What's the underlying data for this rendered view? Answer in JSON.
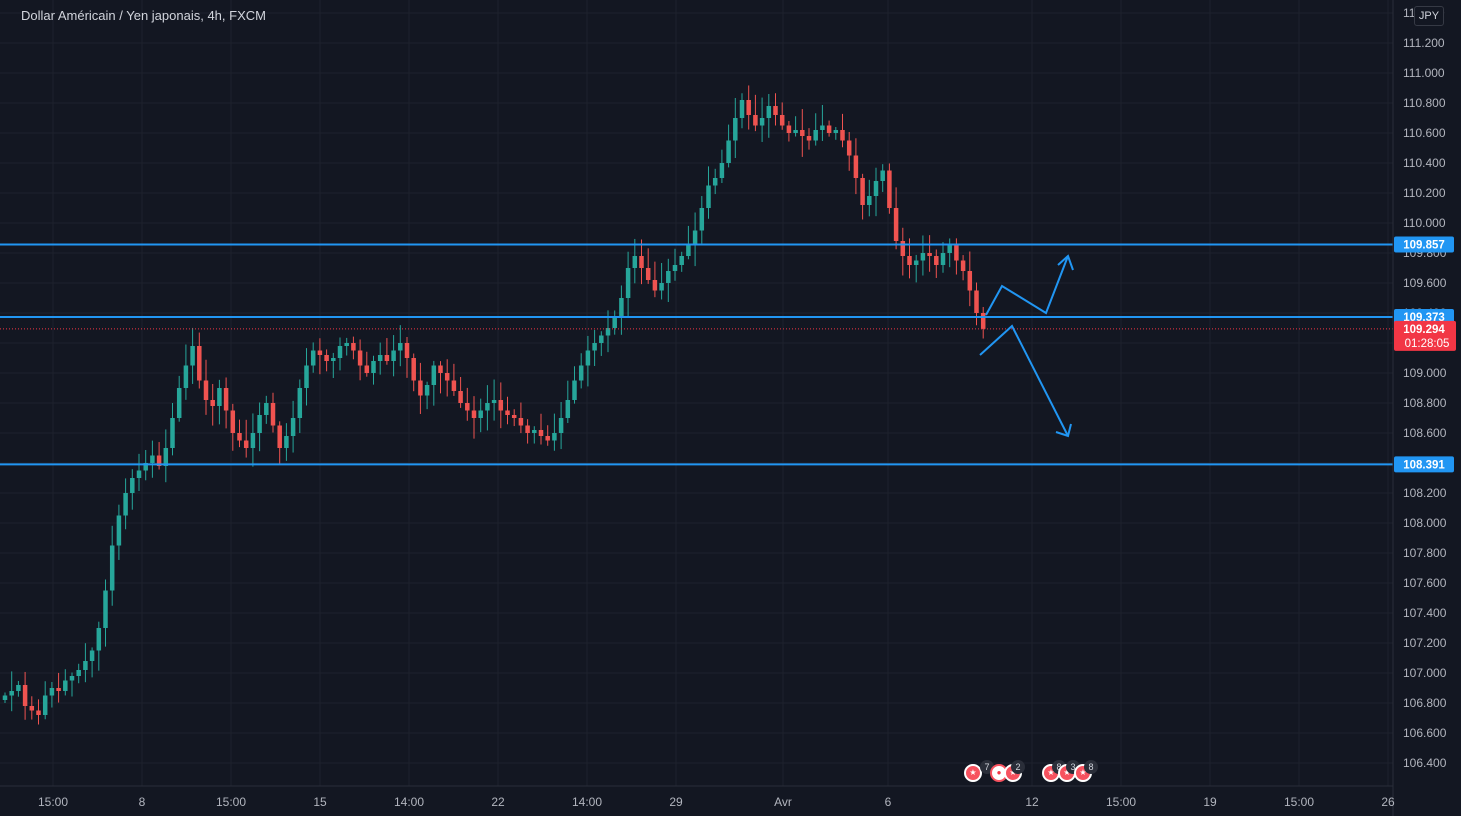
{
  "title": "Dollar Américain / Yen japonais, 4h, FXCM",
  "currency_button": "JPY",
  "colors": {
    "background": "#131722",
    "grid": "#1e222d",
    "up": "#26a69a",
    "down": "#ef5350",
    "line": "#2196f3",
    "price_tag": "#f23645"
  },
  "chart_data": {
    "type": "candlestick",
    "ylim": [
      106.2,
      111.45
    ],
    "y_ticks": [
      "106.400",
      "106.600",
      "106.800",
      "107.000",
      "107.200",
      "107.400",
      "107.600",
      "107.800",
      "108.000",
      "108.200",
      "108.400",
      "108.600",
      "108.800",
      "109.000",
      "109.200",
      "109.400",
      "109.600",
      "109.800",
      "110.000",
      "110.200",
      "110.400",
      "110.600",
      "110.800",
      "111.000",
      "111.200",
      "111.400"
    ],
    "x_ticks": [
      "15:00",
      "8",
      "15:00",
      "15",
      "14:00",
      "22",
      "14:00",
      "29",
      "Avr",
      "6",
      "12",
      "15:00",
      "19",
      "15:00",
      "26"
    ],
    "horizontal_lines": [
      {
        "value": 109.857,
        "label": "109.857"
      },
      {
        "value": 109.373,
        "label": "109.373"
      },
      {
        "value": 108.391,
        "label": "108.391"
      }
    ],
    "current_price": {
      "value": 109.294,
      "label": "109.294",
      "countdown": "01:28:05"
    },
    "closes": [
      106.85,
      106.88,
      106.92,
      106.78,
      106.75,
      106.72,
      106.85,
      106.9,
      106.88,
      106.95,
      106.98,
      107.02,
      107.08,
      107.15,
      107.3,
      107.55,
      107.85,
      108.05,
      108.2,
      108.3,
      108.35,
      108.4,
      108.45,
      108.38,
      108.5,
      108.7,
      108.9,
      109.05,
      109.18,
      108.95,
      108.82,
      108.78,
      108.9,
      108.75,
      108.6,
      108.55,
      108.5,
      108.6,
      108.72,
      108.8,
      108.65,
      108.5,
      108.58,
      108.7,
      108.9,
      109.05,
      109.15,
      109.12,
      109.08,
      109.1,
      109.18,
      109.2,
      109.15,
      109.05,
      109.0,
      109.08,
      109.12,
      109.08,
      109.15,
      109.2,
      109.1,
      108.95,
      108.85,
      108.92,
      109.05,
      109.0,
      108.95,
      108.88,
      108.8,
      108.75,
      108.7,
      108.75,
      108.8,
      108.82,
      108.75,
      108.72,
      108.7,
      108.65,
      108.6,
      108.62,
      108.58,
      108.55,
      108.6,
      108.7,
      108.82,
      108.95,
      109.05,
      109.15,
      109.2,
      109.25,
      109.3,
      109.38,
      109.5,
      109.7,
      109.78,
      109.7,
      109.62,
      109.55,
      109.6,
      109.68,
      109.72,
      109.78,
      109.85,
      109.95,
      110.1,
      110.25,
      110.3,
      110.4,
      110.55,
      110.7,
      110.82,
      110.72,
      110.65,
      110.7,
      110.78,
      110.72,
      110.65,
      110.6,
      110.62,
      110.58,
      110.55,
      110.62,
      110.65,
      110.6,
      110.62,
      110.55,
      110.45,
      110.3,
      110.12,
      110.18,
      110.28,
      110.35,
      110.1,
      109.88,
      109.78,
      109.72,
      109.75,
      109.8,
      109.78,
      109.72,
      109.8,
      109.85,
      109.75,
      109.68,
      109.55,
      109.4,
      109.294
    ]
  },
  "events": [
    {
      "badge": "7"
    },
    {
      "badge": "2"
    },
    {
      "badge": "8"
    },
    {
      "badge": "3"
    },
    {
      "badge": "8"
    }
  ]
}
